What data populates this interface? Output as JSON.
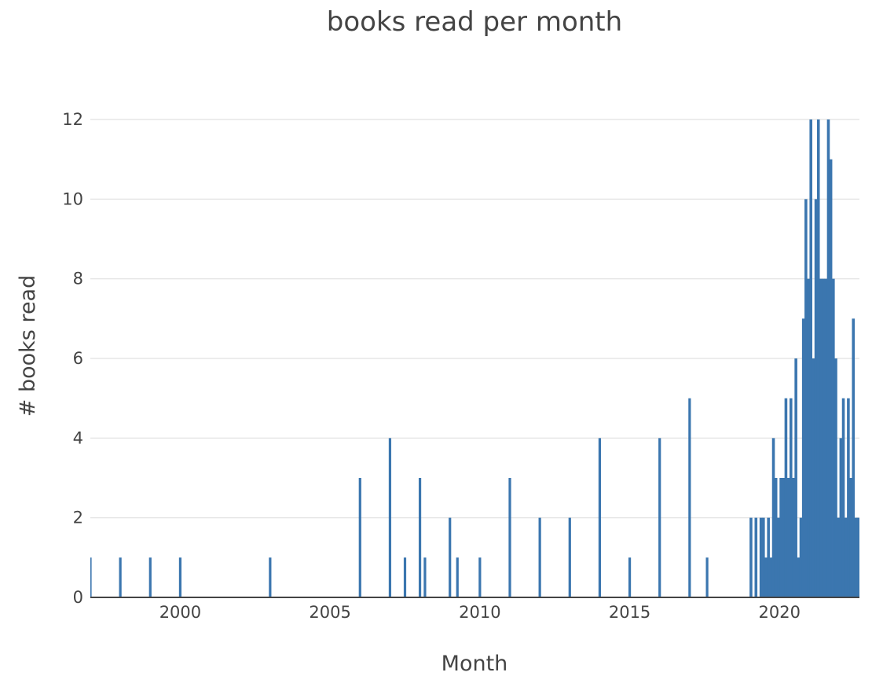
{
  "chart_data": {
    "type": "bar",
    "title": "books read per month",
    "xlabel": "Month",
    "ylabel": "# books read",
    "x_axis": {
      "type": "date",
      "range": [
        "1997-01",
        "2022-09"
      ],
      "ticks": [
        "2000",
        "2005",
        "2010",
        "2015",
        "2020"
      ]
    },
    "y_axis": {
      "range": [
        0,
        12.4
      ],
      "ticks": [
        0,
        2,
        4,
        6,
        8,
        10,
        12
      ]
    },
    "grid": true,
    "legend": "none",
    "bar_color": "#3b76af",
    "x": [
      "1997-01",
      "1998-01",
      "1999-01",
      "2000-01",
      "2003-01",
      "2006-01",
      "2007-01",
      "2007-07",
      "2008-01",
      "2008-03",
      "2009-01",
      "2009-04",
      "2010-01",
      "2011-01",
      "2012-01",
      "2013-01",
      "2014-01",
      "2015-01",
      "2016-01",
      "2017-01",
      "2017-08",
      "2019-01",
      "2019-03",
      "2019-05",
      "2019-06",
      "2019-07",
      "2019-08",
      "2019-09",
      "2019-10",
      "2019-11",
      "2019-12",
      "2020-01",
      "2020-02",
      "2020-03",
      "2020-04",
      "2020-05",
      "2020-06",
      "2020-07",
      "2020-08",
      "2020-09",
      "2020-10",
      "2020-11",
      "2020-12",
      "2021-01",
      "2021-02",
      "2021-03",
      "2021-04",
      "2021-05",
      "2021-06",
      "2021-07",
      "2021-08",
      "2021-09",
      "2021-10",
      "2021-11",
      "2021-12",
      "2022-01",
      "2022-02",
      "2022-03",
      "2022-04",
      "2022-05",
      "2022-06",
      "2022-07",
      "2022-08"
    ],
    "values": [
      1,
      1,
      1,
      1,
      1,
      3,
      4,
      1,
      3,
      1,
      2,
      1,
      1,
      3,
      2,
      2,
      4,
      1,
      4,
      5,
      1,
      2,
      2,
      2,
      2,
      1,
      2,
      1,
      4,
      3,
      2,
      3,
      3,
      5,
      3,
      5,
      3,
      6,
      1,
      2,
      7,
      10,
      8,
      12,
      6,
      10,
      12,
      8,
      8,
      8,
      12,
      11,
      8,
      6,
      2,
      4,
      5,
      2,
      5,
      3,
      7,
      2,
      2
    ]
  }
}
